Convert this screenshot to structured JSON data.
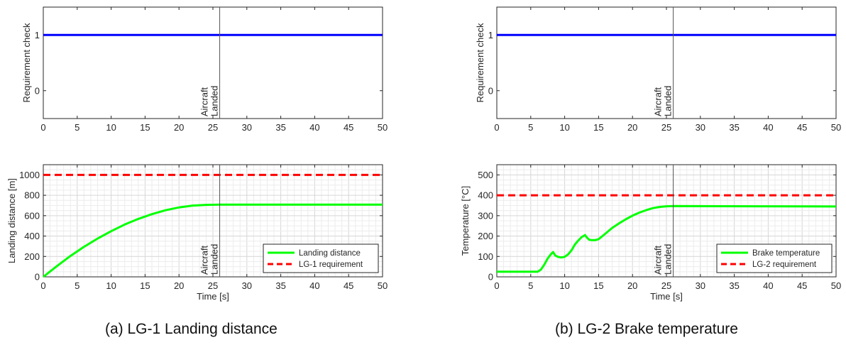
{
  "captions": {
    "left": "(a) LG-1 Landing distance",
    "right": "(b) LG-2 Brake temperature"
  },
  "chart_data": [
    {
      "id": "lg1-check",
      "type": "line",
      "ylabel": "Requirement check",
      "xlabel": "",
      "xlim": [
        0,
        50
      ],
      "ylim": [
        -0.5,
        1.5
      ],
      "xticks": [
        0,
        5,
        10,
        15,
        20,
        25,
        30,
        35,
        40,
        45,
        50
      ],
      "yticks": [
        0,
        1
      ],
      "grid": false,
      "series": [
        {
          "color": "#0000ff",
          "dash": false,
          "x": [
            0,
            50
          ],
          "y": [
            1,
            1
          ]
        }
      ],
      "event": {
        "x": 26,
        "label": [
          "Aircraft",
          "Landed"
        ]
      }
    },
    {
      "id": "lg1-distance",
      "type": "line",
      "ylabel": "Landing distance [m]",
      "xlabel": "Time [s]",
      "xlim": [
        0,
        50
      ],
      "ylim": [
        0,
        1100
      ],
      "xticks": [
        0,
        5,
        10,
        15,
        20,
        25,
        30,
        35,
        40,
        45,
        50
      ],
      "yticks": [
        0,
        200,
        400,
        600,
        800,
        1000
      ],
      "grid": true,
      "legend": "bottom-right",
      "series": [
        {
          "name": "Landing distance",
          "color": "#00ff00",
          "dash": false,
          "x": [
            0,
            2,
            4,
            6,
            8,
            10,
            12,
            14,
            16,
            18,
            20,
            22,
            24,
            26,
            50
          ],
          "y": [
            0,
            105,
            205,
            295,
            375,
            448,
            513,
            568,
            615,
            653,
            681,
            699,
            706,
            708,
            708
          ]
        },
        {
          "name": "LG-1 requirement",
          "color": "#ff0000",
          "dash": true,
          "x": [
            0,
            50
          ],
          "y": [
            1000,
            1000
          ]
        }
      ],
      "event": {
        "x": 26,
        "label": [
          "Aircraft",
          "Landed"
        ]
      }
    },
    {
      "id": "lg2-check",
      "type": "line",
      "ylabel": "Requirement check",
      "xlabel": "",
      "xlim": [
        0,
        50
      ],
      "ylim": [
        -0.5,
        1.5
      ],
      "xticks": [
        0,
        5,
        10,
        15,
        20,
        25,
        30,
        35,
        40,
        45,
        50
      ],
      "yticks": [
        0,
        1
      ],
      "grid": false,
      "series": [
        {
          "color": "#0000ff",
          "dash": false,
          "x": [
            0,
            50
          ],
          "y": [
            1,
            1
          ]
        }
      ],
      "event": {
        "x": 26,
        "label": [
          "Aircraft",
          "Landed"
        ]
      }
    },
    {
      "id": "lg2-temperature",
      "type": "line",
      "ylabel": "Temperature [°C]",
      "xlabel": "Time [s]",
      "xlim": [
        0,
        50
      ],
      "ylim": [
        0,
        550
      ],
      "xticks": [
        0,
        5,
        10,
        15,
        20,
        25,
        30,
        35,
        40,
        45,
        50
      ],
      "yticks": [
        0,
        100,
        200,
        300,
        400,
        500
      ],
      "grid": true,
      "legend": "bottom-right",
      "series": [
        {
          "name": "Brake temperature",
          "color": "#00ff00",
          "dash": false,
          "x": [
            0,
            6,
            6.5,
            7,
            7.5,
            8,
            8.3,
            8.6,
            9,
            9.5,
            10,
            10.5,
            11,
            11.5,
            12,
            12.5,
            13,
            13.3,
            13.6,
            14,
            14.5,
            15,
            15.5,
            16,
            17,
            18,
            19,
            20,
            21,
            22,
            23,
            24,
            25,
            26,
            50
          ],
          "y": [
            25,
            25,
            35,
            60,
            90,
            112,
            122,
            105,
            98,
            95,
            98,
            110,
            130,
            158,
            178,
            195,
            205,
            192,
            182,
            180,
            180,
            185,
            198,
            212,
            240,
            262,
            282,
            300,
            315,
            327,
            337,
            343,
            346,
            347,
            345
          ]
        },
        {
          "name": "LG-2 requirement",
          "color": "#ff0000",
          "dash": true,
          "x": [
            0,
            50
          ],
          "y": [
            400,
            400
          ]
        }
      ],
      "event": {
        "x": 26,
        "label": [
          "Aircraft",
          "Landed"
        ]
      }
    }
  ]
}
